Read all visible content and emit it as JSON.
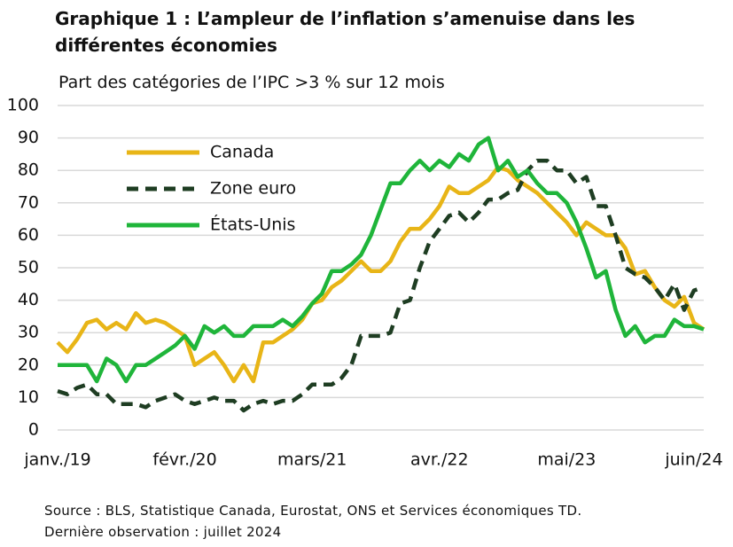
{
  "chart_data": {
    "type": "line",
    "title": "Graphique 1 : L’ampleur de l’inflation s’amenuise dans les différentes économies",
    "subtitle": "Part des catégories de l’IPC >3 % sur 12 mois",
    "notes": [
      "Source : BLS, Statistique Canada, Eurostat, ONS et Services économiques TD.",
      "Dernière observation : juillet 2024"
    ],
    "categories": [
      "janv./19",
      null,
      null,
      null,
      null,
      null,
      null,
      null,
      null,
      null,
      null,
      null,
      null,
      "févr./20",
      null,
      null,
      null,
      null,
      null,
      null,
      null,
      null,
      null,
      null,
      null,
      null,
      "mars/21",
      null,
      null,
      null,
      null,
      null,
      null,
      null,
      null,
      null,
      null,
      null,
      null,
      "avr./22",
      null,
      null,
      null,
      null,
      null,
      null,
      null,
      null,
      null,
      null,
      null,
      null,
      "mai/23",
      null,
      null,
      null,
      null,
      null,
      null,
      null,
      null,
      null,
      null,
      null,
      null,
      "juin/24",
      null
    ],
    "series": [
      {
        "name": "Canada",
        "color": "#e8b517",
        "dashed": false,
        "values": [
          27,
          24,
          28,
          33,
          34,
          31,
          33,
          31,
          36,
          33,
          34,
          33,
          31,
          29,
          20,
          22,
          24,
          20,
          15,
          20,
          15,
          27,
          27,
          29,
          31,
          34,
          39,
          40,
          44,
          46,
          49,
          52,
          49,
          49,
          52,
          58,
          62,
          62,
          65,
          69,
          75,
          73,
          73,
          75,
          77,
          81,
          80,
          77,
          75,
          73,
          70,
          67,
          64,
          60,
          64,
          62,
          60,
          60,
          56,
          48,
          49,
          44,
          40,
          38,
          41,
          33,
          31
        ]
      },
      {
        "name": "Zone euro",
        "color": "#1e3d22",
        "dashed": true,
        "values": [
          12,
          11,
          13,
          14,
          11,
          11,
          8,
          8,
          8,
          7,
          9,
          10,
          11,
          9,
          8,
          9,
          10,
          9,
          9,
          6,
          8,
          9,
          8,
          9,
          9,
          11,
          14,
          14,
          14,
          16,
          20,
          29,
          29,
          29,
          30,
          39,
          40,
          50,
          58,
          62,
          66,
          67,
          64,
          67,
          71,
          71,
          73,
          74,
          80,
          83,
          83,
          80,
          80,
          76,
          78,
          69,
          69,
          60,
          50,
          48,
          47,
          44,
          40,
          45,
          37,
          43,
          44
        ]
      },
      {
        "name": "États-Unis",
        "color": "#1fb53a",
        "dashed": false,
        "values": [
          20,
          20,
          20,
          20,
          15,
          22,
          20,
          15,
          20,
          20,
          22,
          24,
          26,
          29,
          25,
          32,
          30,
          32,
          29,
          29,
          32,
          32,
          32,
          34,
          32,
          35,
          39,
          42,
          49,
          49,
          51,
          54,
          60,
          68,
          76,
          76,
          80,
          83,
          80,
          83,
          81,
          85,
          83,
          88,
          90,
          80,
          83,
          78,
          80,
          76,
          73,
          73,
          70,
          64,
          56,
          47,
          49,
          37,
          29,
          32,
          27,
          29,
          29,
          34,
          32,
          32,
          31
        ]
      }
    ],
    "ylim": [
      0,
      100
    ],
    "yticks": [
      0,
      10,
      20,
      30,
      40,
      50,
      60,
      70,
      80,
      90,
      100
    ],
    "grid": true,
    "legend": "upper left"
  }
}
